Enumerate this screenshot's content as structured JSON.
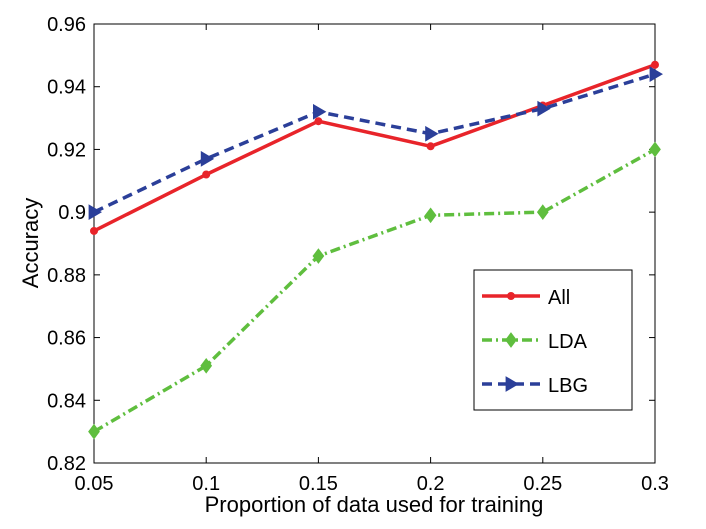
{
  "chart_data": {
    "type": "line",
    "title": "",
    "xlabel": "Proportion of data used for training",
    "ylabel": "Accuracy",
    "x": [
      0.05,
      0.1,
      0.15,
      0.2,
      0.25,
      0.3
    ],
    "x_tick_labels": [
      "0.05",
      "0.1",
      "0.15",
      "0.2",
      "0.25",
      "0.3"
    ],
    "y_tick_labels": [
      "0.82",
      "0.84",
      "0.86",
      "0.88",
      "0.9",
      "0.92",
      "0.94",
      "0.96"
    ],
    "y_ticks": [
      0.82,
      0.84,
      0.86,
      0.88,
      0.9,
      0.92,
      0.94,
      0.96
    ],
    "xlim": [
      0.05,
      0.3
    ],
    "ylim": [
      0.82,
      0.96
    ],
    "grid": false,
    "legend_position": "lower-right",
    "series": [
      {
        "name": "All",
        "values": [
          0.894,
          0.912,
          0.929,
          0.921,
          0.934,
          0.947
        ],
        "color": "#e8242a",
        "line_style": "solid",
        "marker": "star"
      },
      {
        "name": "LDA",
        "values": [
          0.83,
          0.851,
          0.886,
          0.899,
          0.9,
          0.92
        ],
        "color": "#5fbe3e",
        "line_style": "dash-dot",
        "marker": "diamond"
      },
      {
        "name": "LBG",
        "values": [
          0.9,
          0.917,
          0.932,
          0.925,
          0.933,
          0.944
        ],
        "color": "#2b3f99",
        "line_style": "dashed",
        "marker": "triangle-right"
      }
    ]
  }
}
